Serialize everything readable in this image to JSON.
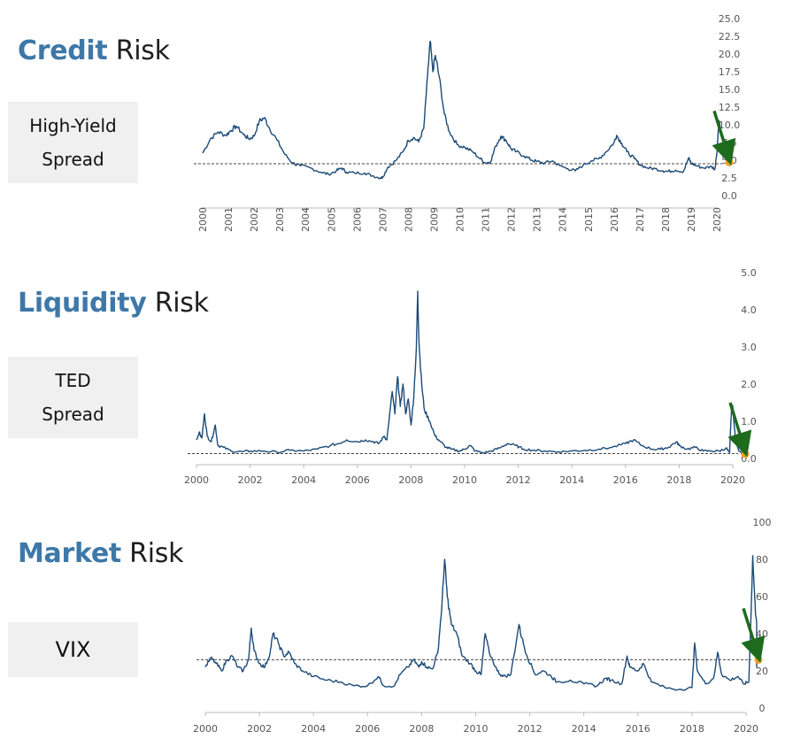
{
  "panels": [
    {
      "title_accent": "Credit",
      "title_rest": " Risk",
      "label_lines": [
        "High-Yield",
        "Spread"
      ],
      "colors": {
        "line": "#1c4a78",
        "marker": "#f0a020",
        "arrow": "#1e6b1e",
        "accent": "#3d78a8"
      }
    },
    {
      "title_accent": "Liquidity",
      "title_rest": " Risk",
      "label_lines": [
        "TED",
        "Spread"
      ]
    },
    {
      "title_accent": "Market",
      "title_rest": " Risk",
      "label_lines": [
        "VIX"
      ]
    }
  ],
  "chart_data": [
    {
      "type": "line",
      "name": "High-Yield Spread",
      "x_tick_labels": [
        "2000",
        "2001",
        "2002",
        "2003",
        "2004",
        "2005",
        "2006",
        "2007",
        "2008",
        "2009",
        "2010",
        "2011",
        "2012",
        "2013",
        "2014",
        "2015",
        "2016",
        "2017",
        "2018",
        "2019",
        "2020"
      ],
      "y_tick_labels": [
        "0.0",
        "2.5",
        "5.0",
        "7.5",
        "10.0",
        "12.5",
        "15.0",
        "17.5",
        "20.0",
        "22.5",
        "25.0"
      ],
      "ylim": [
        0,
        25
      ],
      "xlim": [
        2000,
        2020.3
      ],
      "reference_line": 4.5,
      "current_value": 4.7,
      "points": [
        [
          2000.0,
          6.0
        ],
        [
          2000.3,
          8.0
        ],
        [
          2000.6,
          9.0
        ],
        [
          2000.9,
          8.5
        ],
        [
          2001.1,
          9.2
        ],
        [
          2001.3,
          9.8
        ],
        [
          2001.6,
          8.6
        ],
        [
          2001.8,
          8.0
        ],
        [
          2002.0,
          8.4
        ],
        [
          2002.2,
          10.5
        ],
        [
          2002.4,
          11.0
        ],
        [
          2002.6,
          9.5
        ],
        [
          2002.9,
          7.8
        ],
        [
          2003.2,
          5.8
        ],
        [
          2003.5,
          4.6
        ],
        [
          2003.8,
          4.2
        ],
        [
          2004.2,
          3.9
        ],
        [
          2004.6,
          3.3
        ],
        [
          2004.9,
          3.0
        ],
        [
          2005.2,
          3.5
        ],
        [
          2005.4,
          3.9
        ],
        [
          2005.6,
          3.3
        ],
        [
          2005.9,
          3.2
        ],
        [
          2006.3,
          3.2
        ],
        [
          2006.6,
          2.8
        ],
        [
          2006.9,
          2.5
        ],
        [
          2007.0,
          2.6
        ],
        [
          2007.2,
          4.0
        ],
        [
          2007.5,
          4.9
        ],
        [
          2007.8,
          6.2
        ],
        [
          2008.0,
          7.8
        ],
        [
          2008.2,
          8.2
        ],
        [
          2008.4,
          7.6
        ],
        [
          2008.6,
          9.5
        ],
        [
          2008.75,
          17.0
        ],
        [
          2008.85,
          21.8
        ],
        [
          2008.95,
          17.5
        ],
        [
          2009.05,
          19.8
        ],
        [
          2009.2,
          16.8
        ],
        [
          2009.4,
          11.5
        ],
        [
          2009.6,
          9.0
        ],
        [
          2009.9,
          7.2
        ],
        [
          2010.2,
          6.8
        ],
        [
          2010.5,
          6.2
        ],
        [
          2010.8,
          5.2
        ],
        [
          2011.0,
          4.6
        ],
        [
          2011.2,
          4.8
        ],
        [
          2011.4,
          7.0
        ],
        [
          2011.6,
          8.4
        ],
        [
          2011.8,
          7.8
        ],
        [
          2012.0,
          6.6
        ],
        [
          2012.2,
          6.2
        ],
        [
          2012.5,
          5.6
        ],
        [
          2012.8,
          5.0
        ],
        [
          2013.0,
          4.8
        ],
        [
          2013.3,
          4.6
        ],
        [
          2013.6,
          4.9
        ],
        [
          2013.9,
          4.2
        ],
        [
          2014.2,
          3.8
        ],
        [
          2014.5,
          3.5
        ],
        [
          2014.8,
          4.3
        ],
        [
          2015.1,
          4.9
        ],
        [
          2015.4,
          5.2
        ],
        [
          2015.7,
          6.2
        ],
        [
          2016.0,
          7.5
        ],
        [
          2016.1,
          8.5
        ],
        [
          2016.3,
          7.4
        ],
        [
          2016.5,
          6.2
        ],
        [
          2016.8,
          5.2
        ],
        [
          2017.0,
          4.4
        ],
        [
          2017.3,
          3.9
        ],
        [
          2017.6,
          3.8
        ],
        [
          2017.9,
          3.5
        ],
        [
          2018.1,
          3.4
        ],
        [
          2018.4,
          3.6
        ],
        [
          2018.7,
          3.4
        ],
        [
          2018.9,
          5.3
        ],
        [
          2019.0,
          4.6
        ],
        [
          2019.2,
          4.2
        ],
        [
          2019.5,
          3.9
        ],
        [
          2019.8,
          4.1
        ],
        [
          2019.92,
          3.7
        ],
        [
          2020.0,
          6.0
        ],
        [
          2020.08,
          10.6
        ],
        [
          2020.2,
          8.2
        ],
        [
          2020.35,
          6.3
        ],
        [
          2020.55,
          5.6
        ],
        [
          2020.75,
          5.1
        ],
        [
          2020.9,
          4.7
        ]
      ]
    },
    {
      "type": "line",
      "name": "TED Spread",
      "x_tick_labels": [
        "2000",
        "2002",
        "2004",
        "2006",
        "2008",
        "2010",
        "2012",
        "2014",
        "2016",
        "2018",
        "2020"
      ],
      "y_tick_labels": [
        "0.0",
        "1.0",
        "2.0",
        "3.0",
        "4.0",
        "5.0"
      ],
      "ylim": [
        0,
        5
      ],
      "xlim": [
        2000,
        2020.2
      ],
      "reference_line": 0.13,
      "current_value": 0.12,
      "points": [
        [
          2000.0,
          0.5
        ],
        [
          2000.1,
          0.7
        ],
        [
          2000.2,
          0.55
        ],
        [
          2000.3,
          1.2
        ],
        [
          2000.4,
          0.6
        ],
        [
          2000.55,
          0.45
        ],
        [
          2000.7,
          0.9
        ],
        [
          2000.8,
          0.35
        ],
        [
          2001.0,
          0.3
        ],
        [
          2001.3,
          0.2
        ],
        [
          2001.7,
          0.18
        ],
        [
          2002.0,
          0.2
        ],
        [
          2002.5,
          0.2
        ],
        [
          2003.0,
          0.17
        ],
        [
          2003.5,
          0.22
        ],
        [
          2004.0,
          0.2
        ],
        [
          2004.5,
          0.25
        ],
        [
          2005.0,
          0.35
        ],
        [
          2005.3,
          0.4
        ],
        [
          2005.6,
          0.5
        ],
        [
          2006.0,
          0.45
        ],
        [
          2006.3,
          0.5
        ],
        [
          2006.6,
          0.45
        ],
        [
          2006.8,
          0.4
        ],
        [
          2007.0,
          0.6
        ],
        [
          2007.1,
          0.5
        ],
        [
          2007.3,
          1.8
        ],
        [
          2007.4,
          1.2
        ],
        [
          2007.5,
          2.2
        ],
        [
          2007.6,
          1.4
        ],
        [
          2007.7,
          2.0
        ],
        [
          2007.8,
          1.2
        ],
        [
          2007.9,
          1.6
        ],
        [
          2008.0,
          0.9
        ],
        [
          2008.1,
          1.6
        ],
        [
          2008.2,
          3.0
        ],
        [
          2008.25,
          4.5
        ],
        [
          2008.3,
          3.1
        ],
        [
          2008.4,
          2.0
        ],
        [
          2008.5,
          1.3
        ],
        [
          2008.7,
          1.0
        ],
        [
          2008.9,
          0.6
        ],
        [
          2009.1,
          0.45
        ],
        [
          2009.3,
          0.3
        ],
        [
          2009.5,
          0.25
        ],
        [
          2009.8,
          0.2
        ],
        [
          2010.0,
          0.25
        ],
        [
          2010.2,
          0.35
        ],
        [
          2010.4,
          0.2
        ],
        [
          2010.7,
          0.15
        ],
        [
          2011.0,
          0.2
        ],
        [
          2011.3,
          0.28
        ],
        [
          2011.6,
          0.4
        ],
        [
          2011.9,
          0.35
        ],
        [
          2012.2,
          0.25
        ],
        [
          2012.6,
          0.22
        ],
        [
          2013.0,
          0.2
        ],
        [
          2013.5,
          0.18
        ],
        [
          2014.0,
          0.2
        ],
        [
          2014.5,
          0.22
        ],
        [
          2015.0,
          0.25
        ],
        [
          2015.5,
          0.3
        ],
        [
          2016.0,
          0.4
        ],
        [
          2016.3,
          0.5
        ],
        [
          2016.6,
          0.35
        ],
        [
          2017.0,
          0.25
        ],
        [
          2017.3,
          0.25
        ],
        [
          2017.6,
          0.3
        ],
        [
          2017.9,
          0.45
        ],
        [
          2018.0,
          0.35
        ],
        [
          2018.3,
          0.25
        ],
        [
          2018.6,
          0.3
        ],
        [
          2018.9,
          0.2
        ],
        [
          2019.2,
          0.2
        ],
        [
          2019.5,
          0.2
        ],
        [
          2019.75,
          0.28
        ],
        [
          2019.88,
          0.15
        ],
        [
          2019.95,
          1.3
        ],
        [
          2020.0,
          1.4
        ],
        [
          2020.1,
          0.5
        ],
        [
          2020.2,
          0.25
        ],
        [
          2020.35,
          0.15
        ],
        [
          2020.45,
          0.12
        ]
      ]
    },
    {
      "type": "line",
      "name": "VIX",
      "x_tick_labels": [
        "2000",
        "2002",
        "2004",
        "2006",
        "2008",
        "2010",
        "2012",
        "2014",
        "2016",
        "2018",
        "2020"
      ],
      "y_tick_labels": [
        "0",
        "20",
        "40",
        "60",
        "80",
        "100"
      ],
      "ylim": [
        0,
        100
      ],
      "xlim": [
        2000,
        2020.1
      ],
      "reference_line": 26,
      "current_value": 26,
      "points": [
        [
          2000.0,
          22
        ],
        [
          2000.2,
          27
        ],
        [
          2000.4,
          24
        ],
        [
          2000.6,
          20
        ],
        [
          2000.8,
          26
        ],
        [
          2001.0,
          28
        ],
        [
          2001.2,
          22
        ],
        [
          2001.4,
          20
        ],
        [
          2001.6,
          26
        ],
        [
          2001.7,
          43
        ],
        [
          2001.8,
          31
        ],
        [
          2002.0,
          24
        ],
        [
          2002.2,
          22
        ],
        [
          2002.4,
          30
        ],
        [
          2002.5,
          40
        ],
        [
          2002.7,
          35
        ],
        [
          2002.9,
          28
        ],
        [
          2003.1,
          30
        ],
        [
          2003.3,
          24
        ],
        [
          2003.6,
          20
        ],
        [
          2004.0,
          17
        ],
        [
          2004.5,
          15
        ],
        [
          2005.0,
          14
        ],
        [
          2005.5,
          12
        ],
        [
          2006.0,
          12
        ],
        [
          2006.4,
          17
        ],
        [
          2006.6,
          12
        ],
        [
          2007.0,
          12
        ],
        [
          2007.2,
          18
        ],
        [
          2007.5,
          22
        ],
        [
          2007.7,
          26
        ],
        [
          2007.9,
          22
        ],
        [
          2008.0,
          25
        ],
        [
          2008.2,
          22
        ],
        [
          2008.4,
          21
        ],
        [
          2008.6,
          30
        ],
        [
          2008.75,
          55
        ],
        [
          2008.85,
          80
        ],
        [
          2008.95,
          60
        ],
        [
          2009.1,
          45
        ],
        [
          2009.3,
          40
        ],
        [
          2009.5,
          28
        ],
        [
          2009.8,
          24
        ],
        [
          2010.0,
          20
        ],
        [
          2010.2,
          18
        ],
        [
          2010.35,
          40
        ],
        [
          2010.5,
          30
        ],
        [
          2010.8,
          20
        ],
        [
          2011.0,
          17
        ],
        [
          2011.3,
          18
        ],
        [
          2011.6,
          45
        ],
        [
          2011.7,
          38
        ],
        [
          2011.9,
          28
        ],
        [
          2012.2,
          18
        ],
        [
          2012.5,
          20
        ],
        [
          2012.8,
          17
        ],
        [
          2013.0,
          14
        ],
        [
          2013.5,
          15
        ],
        [
          2014.0,
          13
        ],
        [
          2014.5,
          12
        ],
        [
          2014.8,
          16
        ],
        [
          2015.0,
          15
        ],
        [
          2015.4,
          13
        ],
        [
          2015.6,
          28
        ],
        [
          2015.7,
          22
        ],
        [
          2016.0,
          20
        ],
        [
          2016.2,
          24
        ],
        [
          2016.5,
          14
        ],
        [
          2017.0,
          11
        ],
        [
          2017.5,
          10
        ],
        [
          2018.0,
          11
        ],
        [
          2018.1,
          35
        ],
        [
          2018.2,
          20
        ],
        [
          2018.5,
          13
        ],
        [
          2018.8,
          16
        ],
        [
          2018.95,
          30
        ],
        [
          2019.1,
          18
        ],
        [
          2019.4,
          15
        ],
        [
          2019.7,
          17
        ],
        [
          2019.9,
          13
        ],
        [
          2020.1,
          14
        ],
        [
          2020.2,
          58
        ],
        [
          2020.25,
          82
        ],
        [
          2020.35,
          50
        ],
        [
          2020.5,
          35
        ],
        [
          2020.7,
          30
        ],
        [
          2020.9,
          26
        ],
        [
          2021.0,
          22
        ],
        [
          2021.1,
          26
        ]
      ]
    }
  ]
}
